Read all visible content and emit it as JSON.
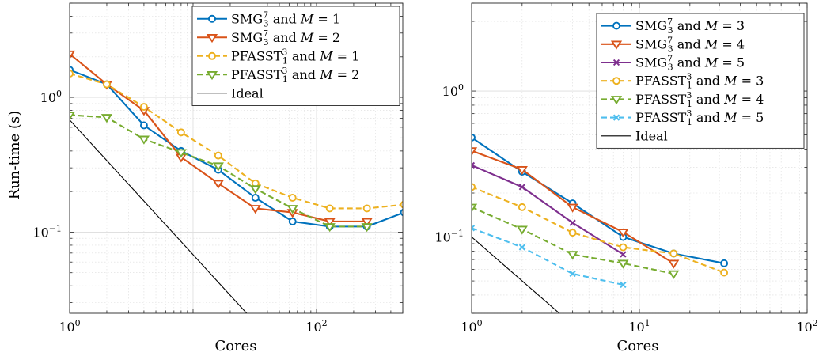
{
  "chart_data": [
    {
      "type": "line",
      "xlabel": "Cores",
      "ylabel": "Run-time (s)",
      "xscale": "log",
      "yscale": "log",
      "xlim": [
        1,
        500
      ],
      "ylim": [
        0.025,
        5
      ],
      "xticks": [
        {
          "value": 1,
          "base": "10",
          "exp": "0"
        },
        {
          "value": 100,
          "base": "10",
          "exp": "2"
        }
      ],
      "yticks": [
        {
          "value": 0.1,
          "base": "10",
          "exp": "−1"
        },
        {
          "value": 1,
          "base": "10",
          "exp": "0"
        }
      ],
      "grid": true,
      "legend_position": "top-right",
      "series": [
        {
          "name": "SMG_3^7 and M = 1",
          "legend": {
            "pre": "SMG",
            "sup": "7",
            "sub": "3",
            "mid": " and ",
            "var": "M",
            "post": " = 1"
          },
          "color": "#0072BD",
          "dashed": false,
          "marker": "circle",
          "x": [
            1,
            2,
            4,
            8,
            16,
            32,
            64,
            128,
            256,
            512,
            1024
          ],
          "y": [
            1.6,
            1.25,
            0.62,
            0.4,
            0.29,
            0.18,
            0.12,
            0.11,
            0.11,
            0.14,
            0.17
          ]
        },
        {
          "name": "SMG_3^7 and M = 2",
          "legend": {
            "pre": "SMG",
            "sup": "7",
            "sub": "3",
            "mid": " and ",
            "var": "M",
            "post": " = 2"
          },
          "color": "#D95319",
          "dashed": false,
          "marker": "triangle-down",
          "x": [
            1,
            2,
            4,
            8,
            16,
            32,
            64,
            128,
            256
          ],
          "y": [
            2.1,
            1.25,
            0.8,
            0.36,
            0.23,
            0.15,
            0.14,
            0.12,
            0.12
          ]
        },
        {
          "name": "PFASST_1^3 and M = 1",
          "legend": {
            "pre": "PFASST",
            "sup": "3",
            "sub": "1",
            "mid": " and ",
            "var": "M",
            "post": " = 1"
          },
          "color": "#EDB120",
          "dashed": true,
          "marker": "circle",
          "x": [
            1,
            2,
            4,
            8,
            16,
            32,
            64,
            128,
            256,
            512,
            1024
          ],
          "y": [
            1.5,
            1.25,
            0.85,
            0.55,
            0.37,
            0.23,
            0.18,
            0.15,
            0.15,
            0.16,
            0.2
          ]
        },
        {
          "name": "PFASST_1^3 and M = 2",
          "legend": {
            "pre": "PFASST",
            "sup": "3",
            "sub": "1",
            "mid": " and ",
            "var": "M",
            "post": " = 2"
          },
          "color": "#77AC30",
          "dashed": true,
          "marker": "triangle-down",
          "x": [
            1,
            2,
            4,
            8,
            16,
            32,
            64,
            128,
            256
          ],
          "y": [
            0.74,
            0.71,
            0.49,
            0.39,
            0.31,
            0.21,
            0.15,
            0.11,
            0.11
          ]
        },
        {
          "name": "Ideal",
          "legend": {
            "pre": "Ideal",
            "sup": "",
            "sub": "",
            "mid": "",
            "var": "",
            "post": ""
          },
          "color": "#000000",
          "dashed": false,
          "marker": "none",
          "x": [
            1,
            32
          ],
          "y": [
            0.68,
            0.02125
          ]
        }
      ]
    },
    {
      "type": "line",
      "xlabel": "Cores",
      "ylabel": "",
      "xscale": "log",
      "yscale": "log",
      "xlim": [
        1,
        100
      ],
      "ylim": [
        0.03,
        4
      ],
      "xticks": [
        {
          "value": 1,
          "base": "10",
          "exp": "0"
        },
        {
          "value": 10,
          "base": "10",
          "exp": "1"
        },
        {
          "value": 100,
          "base": "10",
          "exp": "2"
        }
      ],
      "yticks": [
        {
          "value": 0.1,
          "base": "10",
          "exp": "−1"
        },
        {
          "value": 1,
          "base": "10",
          "exp": "0"
        }
      ],
      "grid": true,
      "legend_position": "top-right",
      "series": [
        {
          "name": "SMG_3^7 and M = 3",
          "legend": {
            "pre": "SMG",
            "sup": "7",
            "sub": "3",
            "mid": " and ",
            "var": "M",
            "post": " = 3"
          },
          "color": "#0072BD",
          "dashed": false,
          "marker": "circle",
          "x": [
            1,
            2,
            4,
            8,
            16,
            32
          ],
          "y": [
            0.48,
            0.28,
            0.17,
            0.1,
            0.077,
            0.066
          ]
        },
        {
          "name": "SMG_3^7 and M = 4",
          "legend": {
            "pre": "SMG",
            "sup": "7",
            "sub": "3",
            "mid": " and ",
            "var": "M",
            "post": " = 4"
          },
          "color": "#D95319",
          "dashed": false,
          "marker": "triangle-down",
          "x": [
            1,
            2,
            4,
            8,
            16
          ],
          "y": [
            0.39,
            0.29,
            0.16,
            0.108,
            0.066
          ]
        },
        {
          "name": "SMG_3^7 and M = 5",
          "legend": {
            "pre": "SMG",
            "sup": "7",
            "sub": "3",
            "mid": " and ",
            "var": "M",
            "post": " = 5"
          },
          "color": "#7E2F8E",
          "dashed": false,
          "marker": "x",
          "x": [
            1,
            2,
            4,
            8
          ],
          "y": [
            0.31,
            0.22,
            0.125,
            0.076
          ]
        },
        {
          "name": "PFASST_1^3 and M = 3",
          "legend": {
            "pre": "PFASST",
            "sup": "3",
            "sub": "1",
            "mid": " and ",
            "var": "M",
            "post": " = 3"
          },
          "color": "#EDB120",
          "dashed": true,
          "marker": "circle",
          "x": [
            1,
            2,
            4,
            8,
            16,
            32
          ],
          "y": [
            0.22,
            0.16,
            0.107,
            0.085,
            0.077,
            0.057
          ]
        },
        {
          "name": "PFASST_1^3 and M = 4",
          "legend": {
            "pre": "PFASST",
            "sup": "3",
            "sub": "1",
            "mid": " and ",
            "var": "M",
            "post": " = 4"
          },
          "color": "#77AC30",
          "dashed": true,
          "marker": "triangle-down",
          "x": [
            1,
            2,
            4,
            8,
            16
          ],
          "y": [
            0.16,
            0.113,
            0.076,
            0.066,
            0.056
          ]
        },
        {
          "name": "PFASST_1^3 and M = 5",
          "legend": {
            "pre": "PFASST",
            "sup": "3",
            "sub": "1",
            "mid": " and ",
            "var": "M",
            "post": " = 5"
          },
          "color": "#4DBEEE",
          "dashed": true,
          "marker": "x",
          "x": [
            1,
            2,
            4,
            8
          ],
          "y": [
            0.115,
            0.085,
            0.056,
            0.047
          ]
        },
        {
          "name": "Ideal",
          "legend": {
            "pre": "Ideal",
            "sup": "",
            "sub": "",
            "mid": "",
            "var": "",
            "post": ""
          },
          "color": "#000000",
          "dashed": false,
          "marker": "none",
          "x": [
            1,
            8
          ],
          "y": [
            0.1,
            0.0125
          ]
        }
      ]
    }
  ]
}
